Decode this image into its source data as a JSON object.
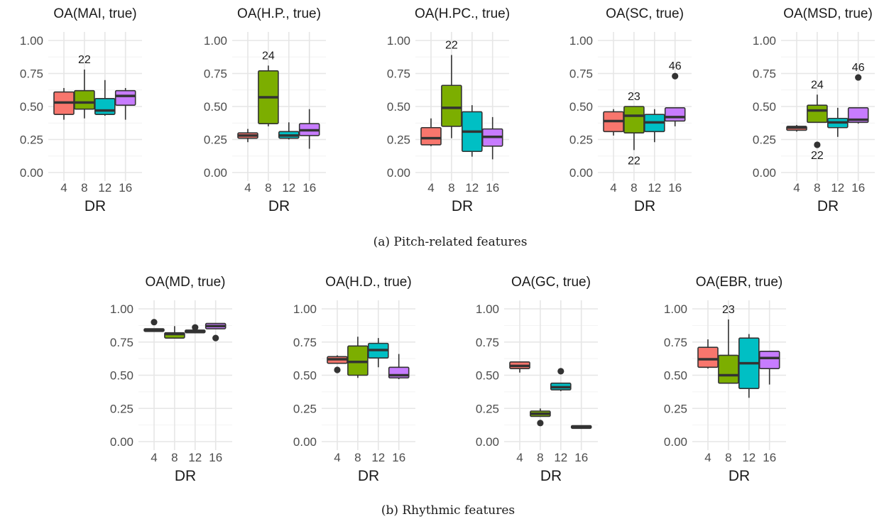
{
  "fill_colors": [
    "#F8766D",
    "#7CAE00",
    "#00BFC4",
    "#C77CFF"
  ],
  "captions": {
    "a": "(a) Pitch-related features",
    "b": "(b) Rhythmic features"
  },
  "chart_data": [
    {
      "type": "box",
      "group": "a",
      "title": "OA(MAI, true)",
      "xlabel": "DR",
      "ylabel": "",
      "categories": [
        "4",
        "8",
        "12",
        "16"
      ],
      "ylim": [
        0,
        1
      ],
      "yticks": [
        "0.00",
        "0.25",
        "0.50",
        "0.75",
        "1.00"
      ],
      "boxes": [
        {
          "min": 0.4,
          "q1": 0.44,
          "median": 0.53,
          "q3": 0.61,
          "max": 0.64,
          "outliers": []
        },
        {
          "min": 0.41,
          "q1": 0.48,
          "median": 0.53,
          "q3": 0.62,
          "max": 0.78,
          "outliers": [],
          "label": "22"
        },
        {
          "min": 0.43,
          "q1": 0.44,
          "median": 0.47,
          "q3": 0.56,
          "max": 0.7,
          "outliers": []
        },
        {
          "min": 0.4,
          "q1": 0.51,
          "median": 0.58,
          "q3": 0.62,
          "max": 0.64,
          "outliers": []
        }
      ]
    },
    {
      "type": "box",
      "group": "a",
      "title": "OA(H.P., true)",
      "xlabel": "DR",
      "ylabel": "",
      "categories": [
        "4",
        "8",
        "12",
        "16"
      ],
      "ylim": [
        0,
        1
      ],
      "yticks": [
        "0.00",
        "0.25",
        "0.50",
        "0.75",
        "1.00"
      ],
      "boxes": [
        {
          "min": 0.23,
          "q1": 0.26,
          "median": 0.28,
          "q3": 0.3,
          "max": 0.33,
          "outliers": []
        },
        {
          "min": 0.35,
          "q1": 0.37,
          "median": 0.57,
          "q3": 0.77,
          "max": 0.81,
          "outliers": [],
          "label": "24"
        },
        {
          "min": 0.25,
          "q1": 0.26,
          "median": 0.28,
          "q3": 0.31,
          "max": 0.38,
          "outliers": []
        },
        {
          "min": 0.18,
          "q1": 0.28,
          "median": 0.32,
          "q3": 0.37,
          "max": 0.48,
          "outliers": []
        }
      ]
    },
    {
      "type": "box",
      "group": "a",
      "title": "OA(H.PC., true)",
      "xlabel": "DR",
      "ylabel": "",
      "categories": [
        "4",
        "8",
        "12",
        "16"
      ],
      "ylim": [
        0,
        1
      ],
      "yticks": [
        "0.00",
        "0.25",
        "0.50",
        "0.75",
        "1.00"
      ],
      "boxes": [
        {
          "min": 0.2,
          "q1": 0.21,
          "median": 0.26,
          "q3": 0.34,
          "max": 0.41,
          "outliers": []
        },
        {
          "min": 0.26,
          "q1": 0.35,
          "median": 0.49,
          "q3": 0.66,
          "max": 0.89,
          "outliers": [],
          "label": "22"
        },
        {
          "min": 0.12,
          "q1": 0.16,
          "median": 0.31,
          "q3": 0.46,
          "max": 0.51,
          "outliers": []
        },
        {
          "min": 0.1,
          "q1": 0.2,
          "median": 0.27,
          "q3": 0.33,
          "max": 0.42,
          "outliers": []
        }
      ]
    },
    {
      "type": "box",
      "group": "a",
      "title": "OA(SC, true)",
      "xlabel": "DR",
      "ylabel": "",
      "categories": [
        "4",
        "8",
        "12",
        "16"
      ],
      "ylim": [
        0,
        1
      ],
      "yticks": [
        "0.00",
        "0.25",
        "0.50",
        "0.75",
        "1.00"
      ],
      "boxes": [
        {
          "min": 0.28,
          "q1": 0.31,
          "median": 0.39,
          "q3": 0.46,
          "max": 0.48,
          "outliers": []
        },
        {
          "min": 0.17,
          "q1": 0.3,
          "median": 0.43,
          "q3": 0.5,
          "max": 0.5,
          "outliers": [],
          "label": "23",
          "label2": "22"
        },
        {
          "min": 0.23,
          "q1": 0.31,
          "median": 0.38,
          "q3": 0.44,
          "max": 0.48,
          "outliers": []
        },
        {
          "min": 0.35,
          "q1": 0.39,
          "median": 0.42,
          "q3": 0.49,
          "max": 0.49,
          "outliers": [
            0.73
          ],
          "label": "46"
        }
      ]
    },
    {
      "type": "box",
      "group": "a",
      "title": "OA(MSD, true)",
      "xlabel": "DR",
      "ylabel": "",
      "categories": [
        "4",
        "8",
        "12",
        "16"
      ],
      "ylim": [
        0,
        1
      ],
      "yticks": [
        "0.00",
        "0.25",
        "0.50",
        "0.75",
        "1.00"
      ],
      "boxes": [
        {
          "min": 0.31,
          "q1": 0.32,
          "median": 0.34,
          "q3": 0.35,
          "max": 0.36,
          "outliers": []
        },
        {
          "min": 0.38,
          "q1": 0.38,
          "median": 0.47,
          "q3": 0.51,
          "max": 0.59,
          "outliers": [
            0.21
          ],
          "label": "24",
          "label2": "22"
        },
        {
          "min": 0.27,
          "q1": 0.34,
          "median": 0.38,
          "q3": 0.41,
          "max": 0.49,
          "outliers": []
        },
        {
          "min": 0.37,
          "q1": 0.38,
          "median": 0.4,
          "q3": 0.49,
          "max": 0.49,
          "outliers": [
            0.72
          ],
          "label": "46"
        }
      ]
    },
    {
      "type": "box",
      "group": "b",
      "title": "OA(MD, true)",
      "xlabel": "DR",
      "ylabel": "",
      "categories": [
        "4",
        "8",
        "12",
        "16"
      ],
      "ylim": [
        0,
        1
      ],
      "yticks": [
        "0.00",
        "0.25",
        "0.50",
        "0.75",
        "1.00"
      ],
      "boxes": [
        {
          "min": 0.83,
          "q1": 0.83,
          "median": 0.84,
          "q3": 0.85,
          "max": 0.85,
          "outliers": [
            0.9
          ]
        },
        {
          "min": 0.78,
          "q1": 0.78,
          "median": 0.81,
          "q3": 0.82,
          "max": 0.87,
          "outliers": []
        },
        {
          "min": 0.82,
          "q1": 0.82,
          "median": 0.83,
          "q3": 0.84,
          "max": 0.84,
          "outliers": [
            0.86
          ]
        },
        {
          "min": 0.85,
          "q1": 0.85,
          "median": 0.87,
          "q3": 0.89,
          "max": 0.89,
          "outliers": [
            0.78
          ]
        }
      ]
    },
    {
      "type": "box",
      "group": "b",
      "title": "OA(H.D., true)",
      "xlabel": "DR",
      "ylabel": "",
      "categories": [
        "4",
        "8",
        "12",
        "16"
      ],
      "ylim": [
        0,
        1
      ],
      "yticks": [
        "0.00",
        "0.25",
        "0.50",
        "0.75",
        "1.00"
      ],
      "boxes": [
        {
          "min": 0.59,
          "q1": 0.59,
          "median": 0.62,
          "q3": 0.64,
          "max": 0.65,
          "outliers": [
            0.54
          ]
        },
        {
          "min": 0.48,
          "q1": 0.5,
          "median": 0.6,
          "q3": 0.72,
          "max": 0.79,
          "outliers": []
        },
        {
          "min": 0.56,
          "q1": 0.63,
          "median": 0.69,
          "q3": 0.74,
          "max": 0.78,
          "outliers": []
        },
        {
          "min": 0.47,
          "q1": 0.48,
          "median": 0.5,
          "q3": 0.56,
          "max": 0.66,
          "outliers": []
        }
      ]
    },
    {
      "type": "box",
      "group": "b",
      "title": "OA(GC, true)",
      "xlabel": "DR",
      "ylabel": "",
      "categories": [
        "4",
        "8",
        "12",
        "16"
      ],
      "ylim": [
        0,
        1
      ],
      "yticks": [
        "0.00",
        "0.25",
        "0.50",
        "0.75",
        "1.00"
      ],
      "boxes": [
        {
          "min": 0.52,
          "q1": 0.55,
          "median": 0.57,
          "q3": 0.6,
          "max": 0.6,
          "outliers": []
        },
        {
          "min": 0.19,
          "q1": 0.19,
          "median": 0.21,
          "q3": 0.23,
          "max": 0.25,
          "outliers": [
            0.14
          ]
        },
        {
          "min": 0.38,
          "q1": 0.39,
          "median": 0.41,
          "q3": 0.44,
          "max": 0.44,
          "outliers": [
            0.53
          ]
        },
        {
          "min": 0.1,
          "q1": 0.1,
          "median": 0.11,
          "q3": 0.12,
          "max": 0.12,
          "outliers": []
        }
      ]
    },
    {
      "type": "box",
      "group": "b",
      "title": "OA(EBR, true)",
      "xlabel": "DR",
      "ylabel": "",
      "categories": [
        "4",
        "8",
        "12",
        "16"
      ],
      "ylim": [
        0,
        1
      ],
      "yticks": [
        "0.00",
        "0.25",
        "0.50",
        "0.75",
        "1.00"
      ],
      "boxes": [
        {
          "min": 0.55,
          "q1": 0.56,
          "median": 0.62,
          "q3": 0.71,
          "max": 0.77,
          "outliers": []
        },
        {
          "min": 0.44,
          "q1": 0.44,
          "median": 0.5,
          "q3": 0.65,
          "max": 0.92,
          "outliers": [],
          "label": "23"
        },
        {
          "min": 0.33,
          "q1": 0.4,
          "median": 0.59,
          "q3": 0.78,
          "max": 0.81,
          "outliers": []
        },
        {
          "min": 0.43,
          "q1": 0.55,
          "median": 0.63,
          "q3": 0.68,
          "max": 0.68,
          "outliers": []
        }
      ]
    }
  ]
}
